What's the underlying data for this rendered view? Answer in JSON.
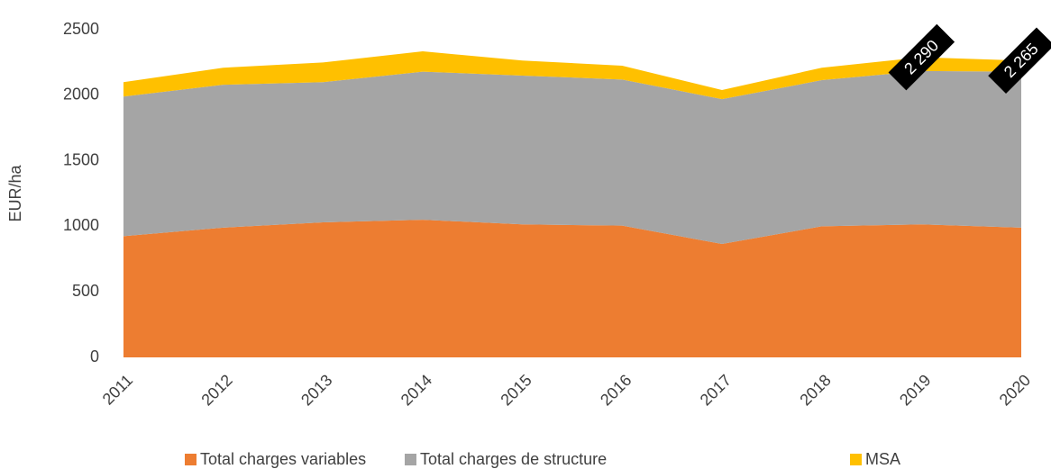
{
  "chart_data": {
    "type": "stacked_area",
    "y_label": "EUR/ha",
    "categories": [
      "2011",
      "2012",
      "2013",
      "2014",
      "2015",
      "2016",
      "2017",
      "2018",
      "2019",
      "2020"
    ],
    "series": [
      {
        "name": "Total charges variables",
        "color": "#ed7d31",
        "values": [
          925,
          990,
          1030,
          1050,
          1015,
          1005,
          865,
          1000,
          1015,
          990
        ]
      },
      {
        "name": "Total charges de structure",
        "color": "#a5a5a5",
        "values": [
          1065,
          1090,
          1070,
          1130,
          1135,
          1115,
          1105,
          1115,
          1170,
          1190
        ]
      },
      {
        "name": "MSA",
        "color": "#ffc000",
        "values": [
          110,
          130,
          150,
          155,
          115,
          105,
          70,
          95,
          105,
          85
        ]
      }
    ],
    "annotations": [
      {
        "text": "2 290",
        "x": "2019",
        "y": 2290
      },
      {
        "text": "2 265",
        "x": "2020",
        "y": 2265
      }
    ],
    "ylim": [
      0,
      2500
    ],
    "yticks": [
      0,
      500,
      1000,
      1500,
      2000,
      2500
    ],
    "grid": false,
    "legend": "bottom"
  }
}
